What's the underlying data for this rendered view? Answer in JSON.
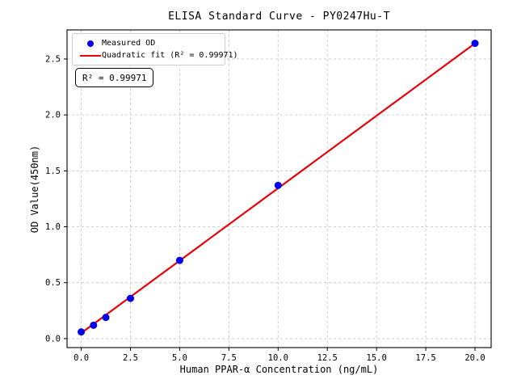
{
  "chart_data": {
    "type": "scatter",
    "title": "ELISA Standard Curve - PY0247Hu-T",
    "xlabel": "Human PPAR-α Concentration (ng/mL)",
    "ylabel": "OD Value(450nm)",
    "xlim": [
      -0.72,
      20.82
    ],
    "ylim": [
      -0.08,
      2.76
    ],
    "xticks": [
      0,
      2.5,
      5,
      7.5,
      10,
      12.5,
      15,
      17.5,
      20
    ],
    "xtick_labels": [
      "0.0",
      "2.5",
      "5.0",
      "7.5",
      "10.0",
      "12.5",
      "15.0",
      "17.5",
      "20.0"
    ],
    "yticks": [
      0,
      0.5,
      1.0,
      1.5,
      2.0,
      2.5
    ],
    "ytick_labels": [
      "0.0",
      "0.5",
      "1.0",
      "1.5",
      "2.0",
      "2.5"
    ],
    "grid": "dashed",
    "grid_color": "#c9c9c9",
    "legend_position": "upper-left",
    "series": [
      {
        "name": "Measured OD",
        "type": "scatter",
        "color": "#0000ee",
        "x": [
          0,
          0.625,
          1.25,
          2.5,
          5,
          10,
          20
        ],
        "y": [
          0.06,
          0.12,
          0.19,
          0.36,
          0.7,
          1.37,
          2.64
        ]
      },
      {
        "name": "Quadratic fit (R² = 0.99971)",
        "type": "line",
        "color": "#e8000b",
        "x": [
          0,
          20
        ],
        "y": [
          0.05,
          2.64
        ]
      }
    ],
    "annotation": "R² = 0.99971"
  }
}
